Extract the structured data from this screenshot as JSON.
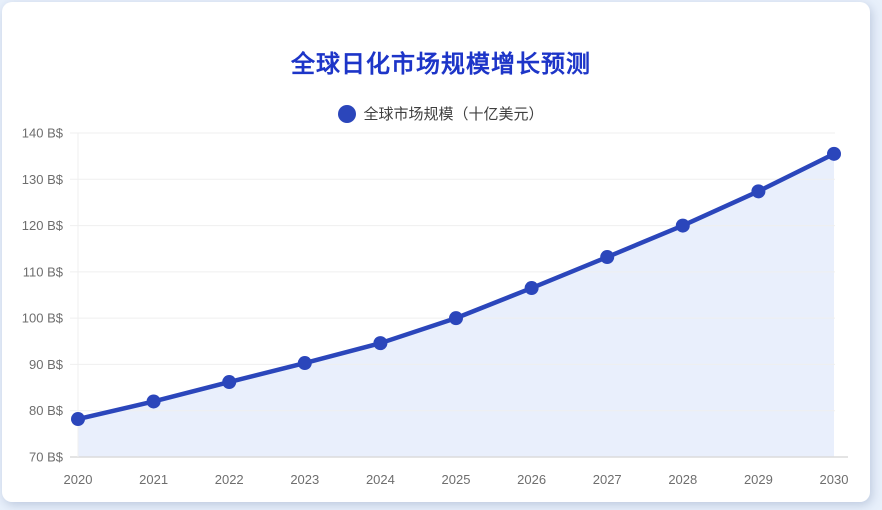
{
  "chart_data": {
    "type": "line",
    "title": "全球日化市场规模增长预测",
    "categories": [
      "2020",
      "2021",
      "2022",
      "2023",
      "2024",
      "2025",
      "2026",
      "2027",
      "2028",
      "2029",
      "2030"
    ],
    "series": [
      {
        "name": "全球市场规模（十亿美元）",
        "values": [
          78.2,
          82,
          86.2,
          90.3,
          94.6,
          100,
          106.5,
          113.2,
          120,
          127.4,
          135.5
        ]
      }
    ],
    "xlabel": "",
    "ylabel": "",
    "ylim": [
      70,
      140
    ],
    "ytick_step": 10,
    "ytick_suffix": " B$",
    "grid": true,
    "legend_position": "top-center",
    "area_fill": true,
    "smooth_markers": true,
    "colors": {
      "line": "#2b46bb",
      "marker": "#2b46bb",
      "area_fill": "#e9effc",
      "title_text": "#1d35c8",
      "axis_text": "#6e6e6e",
      "gridline": "#efefef",
      "axis_line": "#dcdcdc",
      "legend_text": "#3f3f3f",
      "page_background": "#e8f0fb",
      "card_background": "#ffffff"
    }
  }
}
